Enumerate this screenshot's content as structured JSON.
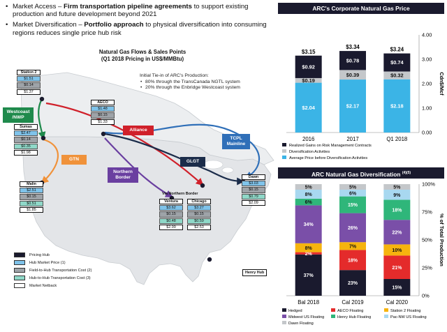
{
  "bullets": [
    {
      "prefix": "Market Access – ",
      "bold": "Firm transportation pipeline agreements",
      "rest": " to support existing production and future development beyond 2021"
    },
    {
      "prefix": "Market Diversification – ",
      "bold": "Portfolio approach",
      "rest": " to physical diversification into consuming regions reduces single price hub risk"
    }
  ],
  "map": {
    "title_line1": "Natural Gas Flows & Sales Points",
    "title_line2": "(Q1 2018 Pricing in US$/MMBtu)",
    "tiein_title": "Initial Tie-in of ARC's Production:",
    "tiein_items": [
      "80% through the TransCanada NGTL system",
      "20% through the Enbridge Westcoast system"
    ],
    "via_label": "Via Northern Border",
    "henry_hub": "Henry Hub",
    "hubs": {
      "station2": {
        "name": "Station 2",
        "price": "$1.51",
        "field": "$0.14",
        "hth": "",
        "net": "$1.37"
      },
      "aeco": {
        "name": "AECO",
        "price": "$1.48",
        "field": "$0.15",
        "hth": "",
        "net": "$1.33"
      },
      "sumas": {
        "name": "Sumas",
        "price": "$2.47",
        "field": "$0.14",
        "hth": "$0.35",
        "net": "$1.98"
      },
      "malin": {
        "name": "Malin",
        "price": "$2.51",
        "field": "$0.15",
        "hth": "$0.51",
        "net": "$1.85"
      },
      "ventura": {
        "name": "Ventura",
        "price": "$3.62",
        "field": "$0.15",
        "hth": "$0.48",
        "net": "$2.99"
      },
      "chicago": {
        "name": "Chicago",
        "price": "$3.27",
        "field": "$0.15",
        "hth": "$0.59",
        "net": "$2.53"
      },
      "dawn": {
        "name": "Dawn",
        "price": "$3.03",
        "field": "$0.15",
        "hth": "$0.79",
        "net": "$2.09"
      }
    },
    "pipelines": {
      "westcoast": "Westcoast /NWP",
      "alliance": "Alliance",
      "gtn": "GTN",
      "northern_border": "Northern Border",
      "glgt": "GLGT",
      "tcpl": "TCPL Mainline"
    },
    "legend": [
      {
        "label": "Pricing Hub",
        "color": "#1a1a2e"
      },
      {
        "label": "Hub Market Price (1)",
        "color": "#7fc3ea"
      },
      {
        "label": "Field-to-Hub Transportation Cost (2)",
        "color": "#9ea3a8"
      },
      {
        "label": "Hub-to-Hub Transportation Cost (3)",
        "color": "#8fd8c8"
      },
      {
        "label": "Market Netback",
        "color": "#ffffff"
      }
    ],
    "pipeline_colors": {
      "westcoast": "#1f8a4c",
      "alliance": "#d0202a",
      "gtn": "#f0923a",
      "northern_border": "#6a3fa0",
      "glgt": "#1b2c4a",
      "tcpl": "#2f6fb8"
    }
  },
  "chart_data": [
    {
      "type": "bar",
      "stacked": true,
      "title": "ARC's Corporate Natural Gas Price",
      "ylabel": "Cdn$/Mcf",
      "ylim": [
        0,
        4
      ],
      "yticks": [
        "0.00",
        "1.00",
        "2.00",
        "3.00",
        "4.00"
      ],
      "categories": [
        "2016",
        "2017",
        "Q1 2018"
      ],
      "totals": [
        "$3.15",
        "$3.34",
        "$3.24"
      ],
      "series": [
        {
          "name": "Average Price before Diversification Activities",
          "color": "#3bb4e6",
          "values": [
            2.04,
            2.17,
            2.18
          ],
          "labels": [
            "$2.04",
            "$2.17",
            "$2.18"
          ]
        },
        {
          "name": "Diversification Activities",
          "color": "#c4c7ca",
          "values": [
            0.19,
            0.39,
            0.32
          ],
          "labels": [
            "$0.19",
            "$0.39",
            "$0.32"
          ]
        },
        {
          "name": "Realized Gains on Risk Management Contracts",
          "color": "#1a1a2e",
          "values": [
            0.92,
            0.78,
            0.74
          ],
          "labels": [
            "$0.92",
            "$0.78",
            "$0.74"
          ]
        }
      ],
      "legend_order": [
        "Realized Gains on Risk Management Contracts",
        "Diversification Activities",
        "Average Price before Diversification Activities"
      ],
      "legend_position": "bottom"
    },
    {
      "type": "bar",
      "stacked": true,
      "title": "ARC Natural Gas Diversification",
      "title_note": "(4)(5)",
      "ylabel": "% of Total Production",
      "ylim": [
        0,
        100
      ],
      "yticks": [
        "0%",
        "25%",
        "50%",
        "75%",
        "100%"
      ],
      "categories": [
        "Bal 2018",
        "Cal 2019",
        "Cal 2020"
      ],
      "series": [
        {
          "name": "Hedged",
          "color": "#1a1a2e",
          "values": [
            37,
            23,
            15
          ],
          "labels": [
            "37%",
            "23%",
            "15%"
          ]
        },
        {
          "name": "AECO Floating",
          "color": "#e42b2b",
          "values": [
            2,
            18,
            21
          ],
          "labels": [
            "2%",
            "18%",
            "21%"
          ]
        },
        {
          "name": "Station 2 Floating",
          "color": "#f6b40e",
          "values": [
            8,
            7,
            10
          ],
          "labels": [
            "8%",
            "7%",
            "10%"
          ]
        },
        {
          "name": "Midwest US Floating",
          "color": "#7a4fa8",
          "values": [
            34,
            26,
            22
          ],
          "labels": [
            "34%",
            "26%",
            "22%"
          ]
        },
        {
          "name": "Henry Hub Floating",
          "color": "#2fb67a",
          "values": [
            6,
            15,
            18
          ],
          "labels": [
            "6%",
            "15%",
            "18%"
          ]
        },
        {
          "name": "Pac-NW US Floating",
          "color": "#a8d8f0",
          "values": [
            8,
            6,
            9
          ],
          "labels": [
            "8%",
            "6%",
            "9%"
          ]
        },
        {
          "name": "Dawn Floating",
          "color": "#c4c7ca",
          "values": [
            5,
            5,
            5
          ],
          "labels": [
            "5%",
            "5%",
            "5%"
          ]
        }
      ],
      "legend_position": "bottom"
    }
  ]
}
